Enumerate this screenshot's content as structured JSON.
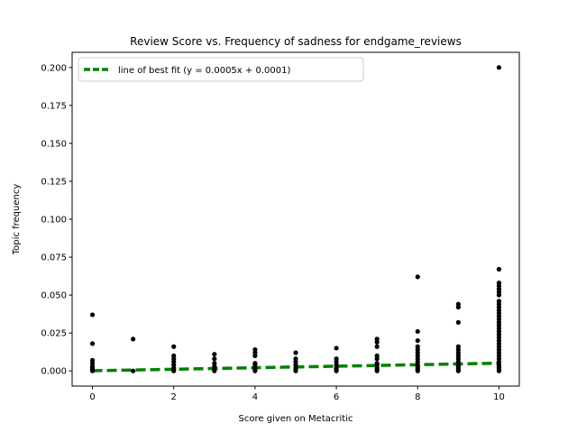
{
  "chart_data": {
    "type": "scatter",
    "title": "Review Score vs. Frequency of sadness for endgame_reviews",
    "xlabel": "Score given on Metacritic",
    "ylabel": "Topic frequency",
    "xlim": [
      -0.5,
      10.5
    ],
    "ylim": [
      -0.01,
      0.21
    ],
    "xticks": [
      0,
      2,
      4,
      6,
      8,
      10
    ],
    "xtick_labels": [
      "0",
      "2",
      "4",
      "6",
      "8",
      "10"
    ],
    "yticks": [
      0.0,
      0.025,
      0.05,
      0.075,
      0.1,
      0.125,
      0.15,
      0.175,
      0.2
    ],
    "ytick_labels": [
      "0.000",
      "0.025",
      "0.050",
      "0.075",
      "0.100",
      "0.125",
      "0.150",
      "0.175",
      "0.200"
    ],
    "grid": false,
    "legend_position": "top-left",
    "colors": {
      "points": "#000000",
      "fit_line": "#008000"
    },
    "series": [
      {
        "kind": "scatter",
        "points": [
          [
            0,
            0.037
          ],
          [
            0,
            0.018
          ],
          [
            0,
            0.007
          ],
          [
            0,
            0.005
          ],
          [
            0,
            0.003
          ],
          [
            0,
            0.002
          ],
          [
            0,
            0.001
          ],
          [
            0,
            0.0
          ],
          [
            1,
            0.021
          ],
          [
            1,
            0.0
          ],
          [
            2,
            0.016
          ],
          [
            2,
            0.01
          ],
          [
            2,
            0.008
          ],
          [
            2,
            0.006
          ],
          [
            2,
            0.004
          ],
          [
            2,
            0.002
          ],
          [
            2,
            0.001
          ],
          [
            2,
            0.0
          ],
          [
            3,
            0.011
          ],
          [
            3,
            0.008
          ],
          [
            3,
            0.005
          ],
          [
            3,
            0.003
          ],
          [
            3,
            0.001
          ],
          [
            3,
            0.0
          ],
          [
            4,
            0.014
          ],
          [
            4,
            0.012
          ],
          [
            4,
            0.01
          ],
          [
            4,
            0.005
          ],
          [
            4,
            0.004
          ],
          [
            4,
            0.002
          ],
          [
            4,
            0.001
          ],
          [
            4,
            0.0
          ],
          [
            5,
            0.012
          ],
          [
            5,
            0.008
          ],
          [
            5,
            0.006
          ],
          [
            5,
            0.004
          ],
          [
            5,
            0.002
          ],
          [
            5,
            0.001
          ],
          [
            5,
            0.0
          ],
          [
            6,
            0.015
          ],
          [
            6,
            0.008
          ],
          [
            6,
            0.006
          ],
          [
            6,
            0.004
          ],
          [
            6,
            0.002
          ],
          [
            6,
            0.001
          ],
          [
            6,
            0.0
          ],
          [
            7,
            0.021
          ],
          [
            7,
            0.019
          ],
          [
            7,
            0.016
          ],
          [
            7,
            0.01
          ],
          [
            7,
            0.008
          ],
          [
            7,
            0.005
          ],
          [
            7,
            0.004
          ],
          [
            7,
            0.002
          ],
          [
            7,
            0.001
          ],
          [
            7,
            0.0
          ],
          [
            8,
            0.062
          ],
          [
            8,
            0.026
          ],
          [
            8,
            0.02
          ],
          [
            8,
            0.016
          ],
          [
            8,
            0.014
          ],
          [
            8,
            0.012
          ],
          [
            8,
            0.01
          ],
          [
            8,
            0.008
          ],
          [
            8,
            0.006
          ],
          [
            8,
            0.004
          ],
          [
            8,
            0.003
          ],
          [
            8,
            0.002
          ],
          [
            8,
            0.001
          ],
          [
            8,
            0.0
          ],
          [
            9,
            0.044
          ],
          [
            9,
            0.042
          ],
          [
            9,
            0.032
          ],
          [
            9,
            0.016
          ],
          [
            9,
            0.014
          ],
          [
            9,
            0.012
          ],
          [
            9,
            0.01
          ],
          [
            9,
            0.008
          ],
          [
            9,
            0.006
          ],
          [
            9,
            0.004
          ],
          [
            9,
            0.003
          ],
          [
            9,
            0.002
          ],
          [
            9,
            0.001
          ],
          [
            9,
            0.0
          ],
          [
            10,
            0.2
          ],
          [
            10,
            0.067
          ],
          [
            10,
            0.058
          ],
          [
            10,
            0.056
          ],
          [
            10,
            0.054
          ],
          [
            10,
            0.052
          ],
          [
            10,
            0.05
          ],
          [
            10,
            0.046
          ],
          [
            10,
            0.044
          ],
          [
            10,
            0.042
          ],
          [
            10,
            0.04
          ],
          [
            10,
            0.038
          ],
          [
            10,
            0.036
          ],
          [
            10,
            0.034
          ],
          [
            10,
            0.032
          ],
          [
            10,
            0.03
          ],
          [
            10,
            0.028
          ],
          [
            10,
            0.026
          ],
          [
            10,
            0.024
          ],
          [
            10,
            0.022
          ],
          [
            10,
            0.02
          ],
          [
            10,
            0.018
          ],
          [
            10,
            0.016
          ],
          [
            10,
            0.014
          ],
          [
            10,
            0.012
          ],
          [
            10,
            0.01
          ],
          [
            10,
            0.008
          ],
          [
            10,
            0.006
          ],
          [
            10,
            0.004
          ],
          [
            10,
            0.003
          ],
          [
            10,
            0.002
          ],
          [
            10,
            0.001
          ],
          [
            10,
            0.0
          ]
        ]
      },
      {
        "kind": "line",
        "name": "line of best fit (y = 0.0005x + 0.0001)",
        "slope": 0.0005,
        "intercept": 0.0001,
        "x_range": [
          0,
          10
        ]
      }
    ]
  }
}
